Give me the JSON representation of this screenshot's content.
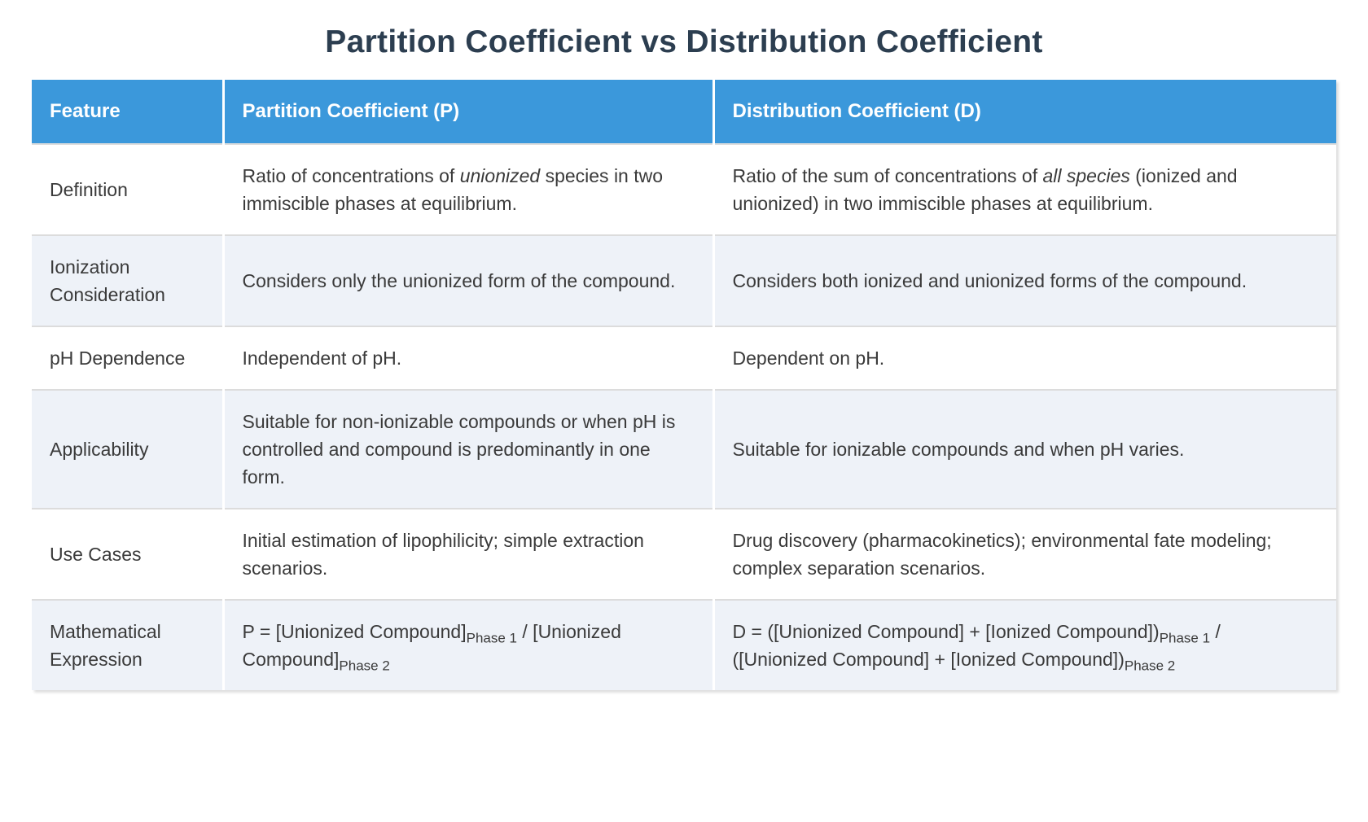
{
  "title": "Partition Coefficient vs Distribution Coefficient",
  "colors": {
    "header_bg": "#3b98db",
    "header_text": "#ffffff",
    "stripe_bg": "#eef2f8",
    "border": "#dcdcdc",
    "title_text": "#2c3e50",
    "body_text": "#3a3a3a"
  },
  "table": {
    "headers": [
      "Feature",
      "Partition Coefficient (P)",
      "Distribution Coefficient (D)"
    ],
    "rows": [
      {
        "feature": "Definition",
        "p": [
          {
            "text": "Ratio of concentrations of "
          },
          {
            "em": "unionized"
          },
          {
            "text": " species in two immiscible phases at equilibrium."
          }
        ],
        "d": [
          {
            "text": "Ratio of the sum of concentrations of "
          },
          {
            "em": "all species"
          },
          {
            "text": " (ionized and unionized) in two immiscible phases at equilibrium."
          }
        ]
      },
      {
        "feature": "Ionization Consideration",
        "p": [
          {
            "text": "Considers only the unionized form of the compound."
          }
        ],
        "d": [
          {
            "text": "Considers both ionized and unionized forms of the compound."
          }
        ]
      },
      {
        "feature": "pH Dependence",
        "p": [
          {
            "text": "Independent of pH."
          }
        ],
        "d": [
          {
            "text": "Dependent on pH."
          }
        ]
      },
      {
        "feature": "Applicability",
        "p": [
          {
            "text": "Suitable for non-ionizable compounds or when pH is controlled and compound is predominantly in one form."
          }
        ],
        "d": [
          {
            "text": "Suitable for ionizable compounds and when pH varies."
          }
        ]
      },
      {
        "feature": "Use Cases",
        "p": [
          {
            "text": "Initial estimation of lipophilicity; simple extraction scenarios."
          }
        ],
        "d": [
          {
            "text": "Drug discovery (pharmacokinetics); environmental fate modeling; complex separation scenarios."
          }
        ]
      },
      {
        "feature": "Mathematical Expression",
        "p": [
          {
            "text": "P = [Unionized Compound]"
          },
          {
            "sub": "Phase 1"
          },
          {
            "text": " / [Unionized Compound]"
          },
          {
            "sub": "Phase 2"
          }
        ],
        "d": [
          {
            "text": "D = ([Unionized Compound] + [Ionized Compound])"
          },
          {
            "sub": "Phase 1"
          },
          {
            "text": " / ([Unionized Compound] + [Ionized Compound])"
          },
          {
            "sub": "Phase 2"
          }
        ]
      }
    ]
  }
}
